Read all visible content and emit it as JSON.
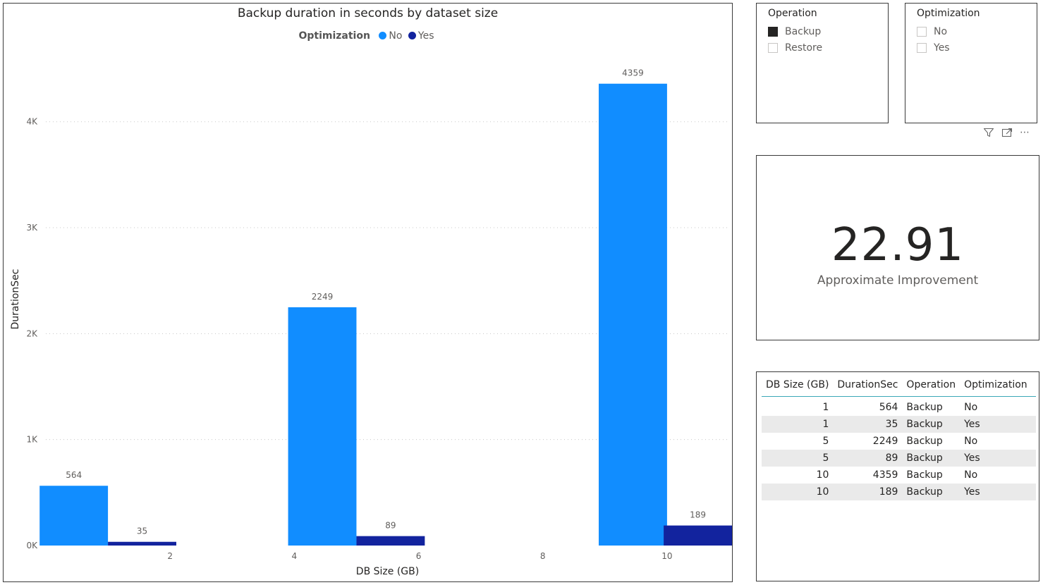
{
  "chart": {
    "title": "Backup duration in seconds by dataset size",
    "legend_title": "Optimization",
    "legend": [
      {
        "label": "No",
        "color": "#118DFF"
      },
      {
        "label": "Yes",
        "color": "#12239E"
      }
    ]
  },
  "chart_data": {
    "type": "bar",
    "title": "Backup duration in seconds by dataset size",
    "xlabel": "DB Size (GB)",
    "ylabel": "DurationSec",
    "legend_title": "Optimization",
    "legend_position": "top-center",
    "grid": true,
    "xlim": [
      0,
      11
    ],
    "ylim": [
      0,
      4650
    ],
    "x_ticks": [
      2,
      4,
      6,
      8,
      10
    ],
    "x_tick_labels": [
      "2",
      "4",
      "6",
      "8",
      "10"
    ],
    "y_ticks": [
      0,
      1000,
      2000,
      3000,
      4000
    ],
    "y_tick_labels": [
      "0K",
      "1K",
      "2K",
      "3K",
      "4K"
    ],
    "x": [
      1,
      5,
      10
    ],
    "series": [
      {
        "name": "No",
        "color": "#118DFF",
        "values": [
          564,
          2249,
          4359
        ]
      },
      {
        "name": "Yes",
        "color": "#12239E",
        "values": [
          35,
          89,
          189
        ]
      }
    ],
    "data_labels": true
  },
  "slicers": {
    "operation": {
      "title": "Operation",
      "options": [
        {
          "label": "Backup",
          "checked": true
        },
        {
          "label": "Restore",
          "checked": false
        }
      ]
    },
    "optimization": {
      "title": "Optimization",
      "options": [
        {
          "label": "No",
          "checked": false
        },
        {
          "label": "Yes",
          "checked": false
        }
      ]
    }
  },
  "visual_header": {
    "icons": [
      "filter-icon",
      "focus-mode-icon",
      "more-options-icon"
    ],
    "more_glyph": "⋯"
  },
  "card": {
    "value": "22.91",
    "label": "Approximate Improvement"
  },
  "table": {
    "headers": [
      "DB Size (GB)",
      "DurationSec",
      "Operation",
      "Optimization"
    ],
    "rows": [
      [
        "1",
        "564",
        "Backup",
        "No"
      ],
      [
        "1",
        "35",
        "Backup",
        "Yes"
      ],
      [
        "5",
        "2249",
        "Backup",
        "No"
      ],
      [
        "5",
        "89",
        "Backup",
        "Yes"
      ],
      [
        "10",
        "4359",
        "Backup",
        "No"
      ],
      [
        "10",
        "189",
        "Backup",
        "Yes"
      ]
    ]
  }
}
